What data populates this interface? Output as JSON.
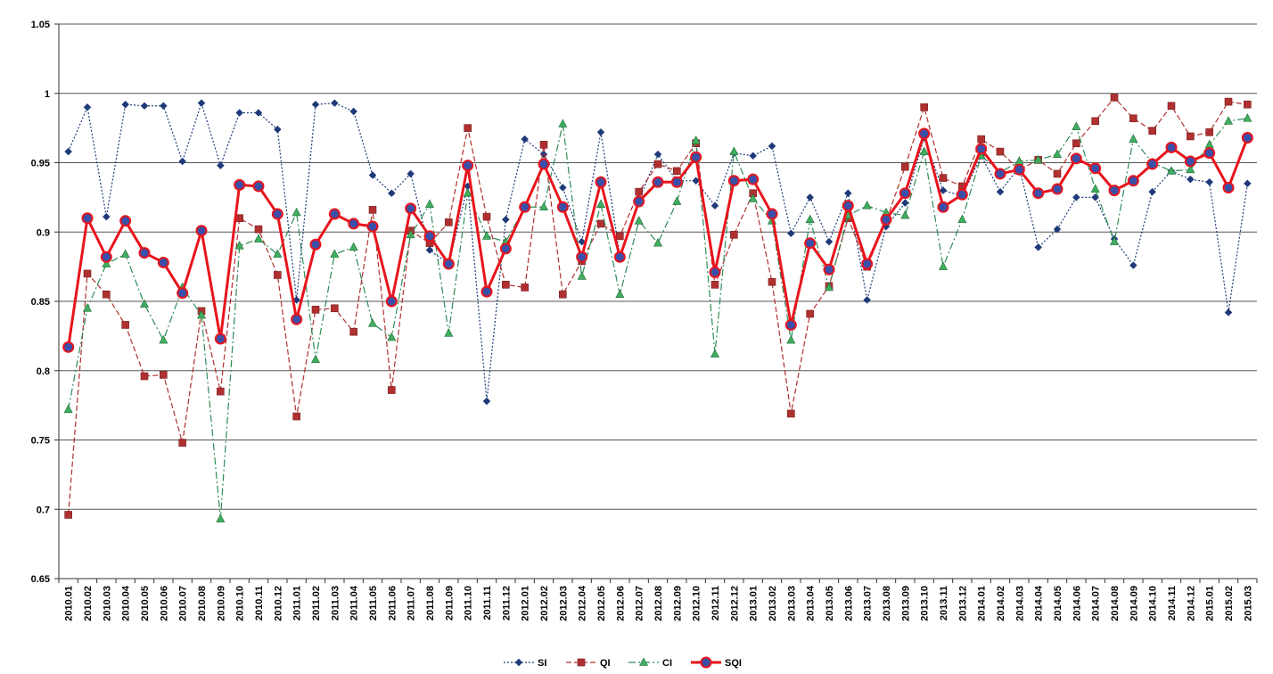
{
  "chart_data": {
    "type": "line",
    "title": "",
    "xlabel": "",
    "ylabel": "",
    "ylim": [
      0.65,
      1.05
    ],
    "yticks": [
      "0.65",
      "0.7",
      "0.75",
      "0.8",
      "0.85",
      "0.9",
      "0.95",
      "1",
      "1.05"
    ],
    "grid": "horizontal",
    "legend_position": "bottom",
    "categories": [
      "2010.01",
      "2010.02",
      "2010.03",
      "2010.04",
      "2010.05",
      "2010.06",
      "2010.07",
      "2010.08",
      "2010.09",
      "2010.10",
      "2010.11",
      "2010.12",
      "2011.01",
      "2011.02",
      "2011.03",
      "2011.04",
      "2011.05",
      "2011.06",
      "2011.07",
      "2011.08",
      "2011.09",
      "2011.10",
      "2011.11",
      "2011.12",
      "2012.01",
      "2012.02",
      "2012.03",
      "2012.04",
      "2012.05",
      "2012.06",
      "2012.07",
      "2012.08",
      "2012.09",
      "2012.10",
      "2012.11",
      "2012.12",
      "2013.01",
      "2013.02",
      "2013.03",
      "2013.04",
      "2013.05",
      "2013.06",
      "2013.07",
      "2013.08",
      "2013.09",
      "2013.10",
      "2013.11",
      "2013.12",
      "2014.01",
      "2014.02",
      "2014.03",
      "2014.04",
      "2014.05",
      "2014.06",
      "2014.07",
      "2014.08",
      "2014.09",
      "2014.10",
      "2014.11",
      "2014.12",
      "2015.01",
      "2015.02",
      "2015.03"
    ],
    "series": [
      {
        "name": "SI",
        "color": "#1f3a7a",
        "line_style": "dotted",
        "marker": "diamond",
        "values": [
          0.958,
          0.99,
          0.911,
          0.992,
          0.991,
          0.991,
          0.951,
          0.993,
          0.948,
          0.986,
          0.986,
          0.974,
          0.851,
          0.992,
          0.993,
          0.987,
          0.941,
          0.928,
          0.942,
          0.887,
          0.877,
          0.933,
          0.778,
          0.909,
          0.967,
          0.956,
          0.932,
          0.893,
          0.972,
          0.883,
          0.923,
          0.956,
          0.937,
          0.937,
          0.919,
          0.957,
          0.955,
          0.962,
          0.899,
          0.925,
          0.893,
          0.928,
          0.851,
          0.904,
          0.921,
          0.968,
          0.93,
          0.926,
          0.955,
          0.929,
          0.947,
          0.889,
          0.902,
          0.925,
          0.925,
          0.895,
          0.876,
          0.929,
          0.944,
          0.938,
          0.936,
          0.842,
          0.935
        ]
      },
      {
        "name": "QI",
        "color": "#b03030",
        "line_style": "dashed",
        "marker": "square",
        "values": [
          0.696,
          0.87,
          0.855,
          0.833,
          0.796,
          0.797,
          0.748,
          0.843,
          0.785,
          0.91,
          0.902,
          0.869,
          0.767,
          0.844,
          0.845,
          0.828,
          0.916,
          0.786,
          0.901,
          0.892,
          0.907,
          0.975,
          0.911,
          0.862,
          0.86,
          0.963,
          0.855,
          0.879,
          0.906,
          0.897,
          0.929,
          0.949,
          0.944,
          0.964,
          0.862,
          0.898,
          0.928,
          0.864,
          0.769,
          0.841,
          0.861,
          0.91,
          0.875,
          0.908,
          0.947,
          0.99,
          0.939,
          0.933,
          0.967,
          0.958,
          0.945,
          0.952,
          0.942,
          0.964,
          0.98,
          0.997,
          0.982,
          0.973,
          0.991,
          0.969,
          0.972,
          0.994,
          0.992
        ]
      },
      {
        "name": "CI",
        "color": "#2e8b57",
        "line_style": "dashdot",
        "marker": "triangle",
        "values": [
          0.772,
          0.845,
          0.877,
          0.884,
          0.848,
          0.822,
          0.86,
          0.84,
          0.693,
          0.89,
          0.895,
          0.884,
          0.914,
          0.808,
          0.884,
          0.889,
          0.834,
          0.824,
          0.898,
          0.92,
          0.827,
          0.928,
          0.897,
          0.893,
          0.918,
          0.918,
          0.978,
          0.868,
          0.92,
          0.855,
          0.908,
          0.892,
          0.922,
          0.966,
          0.812,
          0.958,
          0.924,
          0.908,
          0.822,
          0.909,
          0.86,
          0.912,
          0.919,
          0.914,
          0.912,
          0.958,
          0.875,
          0.909,
          0.955,
          0.943,
          0.951,
          0.952,
          0.956,
          0.976,
          0.931,
          0.893,
          0.967,
          0.95,
          0.944,
          0.945,
          0.963,
          0.98,
          0.982
        ]
      },
      {
        "name": "SQI",
        "color": "#e8141c",
        "line_style": "solid",
        "marker": "circle",
        "values": [
          0.817,
          0.91,
          0.882,
          0.908,
          0.885,
          0.878,
          0.856,
          0.901,
          0.823,
          0.934,
          0.933,
          0.913,
          0.837,
          0.891,
          0.913,
          0.906,
          0.904,
          0.85,
          0.917,
          0.897,
          0.877,
          0.948,
          0.857,
          0.888,
          0.918,
          0.949,
          0.918,
          0.882,
          0.936,
          0.882,
          0.922,
          0.936,
          0.936,
          0.954,
          0.871,
          0.937,
          0.938,
          0.913,
          0.833,
          0.892,
          0.873,
          0.919,
          0.877,
          0.909,
          0.928,
          0.971,
          0.918,
          0.927,
          0.96,
          0.942,
          0.945,
          0.928,
          0.931,
          0.953,
          0.946,
          0.93,
          0.937,
          0.949,
          0.961,
          0.951,
          0.957,
          0.932,
          0.968
        ]
      }
    ]
  }
}
